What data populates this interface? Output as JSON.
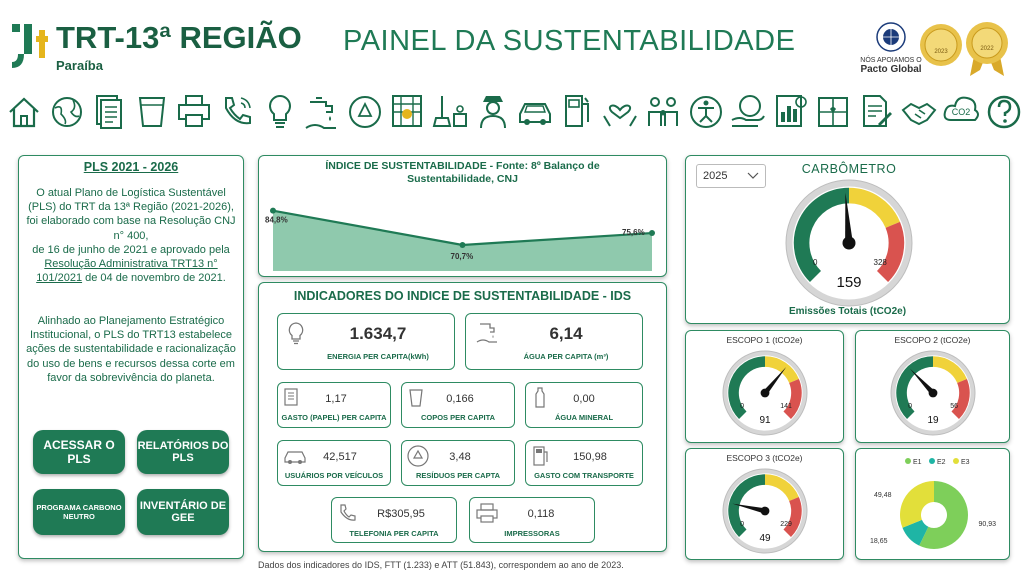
{
  "header": {
    "org_name": "TRT-13ª REGIÃO",
    "org_sub": "Paraíba",
    "title": "PAINEL DA SUSTENTABILIDADE",
    "pacto_line1": "NÓS APOIAMOS O",
    "pacto_line2": "Pacto Global",
    "seal1_year": "2023",
    "seal2_year": "2022",
    "icons": [
      "home-icon",
      "globe-icon",
      "documents-icon",
      "cups-icon",
      "printer-icon",
      "phone-icon",
      "lightbulb-icon",
      "faucet-icon",
      "recycle-icon",
      "building-workers-icon",
      "cleaning-icon",
      "security-guard-icon",
      "car-icon",
      "fuel-pump-icon",
      "heart-hands-icon",
      "people-icon",
      "accessibility-icon",
      "sustainable-hand-icon",
      "report-icon",
      "puzzle-icon",
      "document-pen-icon",
      "handshake-icon",
      "co2-cloud-icon",
      "help-icon"
    ]
  },
  "pls": {
    "title": "PLS 2021 - 2026",
    "p1_a": "O atual Plano de Logística Sustentável (PLS) do TRT da 13ª Região (2021-2026), foi elaborado com base na Resolução CNJ n° 400,",
    "p1_b": "de 16 de junho de 2021 e aprovado pela",
    "p1_link": "Resolução Administrativa TRT13 n° 101/2021",
    "p1_c": "de 04 de novembro de 2021.",
    "p2": "Alinhado ao Planejamento Estratégico Institucional, o PLS do TRT13 estabelece ações de sustentabilidade e racionalização do uso de bens e recursos dessa corte em favor da sobrevivência do planeta.",
    "buttons": [
      "ACESSAR O PLS",
      "RELATÓRIOS DO PLS",
      "PROGRAMA CARBONO NEUTRO",
      "INVENTÁRIO DE GEE"
    ]
  },
  "chart_data": {
    "type": "area",
    "title": "ÍNDICE DE SUSTENTABILIDADE - Fonte: 8º Balanço de Sustentabilidade, CNJ",
    "values": [
      84.8,
      70.7,
      75.6
    ],
    "labels": [
      "84,8%",
      "70,7%",
      "75,6%"
    ]
  },
  "ids": {
    "title": "INDICADORES DO INDICE DE SUSTENTABILIDADE - IDS",
    "energia_val": "1.634,7",
    "energia_lbl": "ENERGIA PER CAPITA(kWh)",
    "agua_val": "6,14",
    "agua_lbl": "ÁGUA PER CAPITA (m³)",
    "papel_val": "1,17",
    "papel_lbl": "GASTO (PAPEL) PER CAPITA",
    "copos_val": "0,166",
    "copos_lbl": "COPOS PER CAPITA",
    "mineral_val": "0,00",
    "mineral_lbl": "ÁGUA MINERAL",
    "veiculos_val": "42,517",
    "veiculos_lbl": "USUÁRIOS POR VEÍCULOS",
    "residuos_val": "3,48",
    "residuos_lbl": "RESÍDUOS PER CAPTA",
    "transporte_val": "150,98",
    "transporte_lbl": "GASTO COM TRANSPORTE",
    "telefonia_val": "R$305,95",
    "telefonia_lbl": "TELEFONIA PER CAPITA",
    "impressoras_val": "0,118",
    "impressoras_lbl": "IMPRESSORAS",
    "footnote": "Dados dos indicadores do IDS, FTT (1.233) e ATT (51.843), correspondem ao ano de 2023."
  },
  "carbometro": {
    "year": "2025",
    "title": "CARBÔMETRO",
    "min": "0",
    "max": "328",
    "value": "159",
    "value_num": 159,
    "max_num": 328,
    "footer": "Emissões Totais  (tCO2e)"
  },
  "escopo1": {
    "title": "ESCOPO 1 (tCO2e)",
    "min": "0",
    "max": "141",
    "value": "91",
    "value_num": 91,
    "max_num": 141
  },
  "escopo2": {
    "title": "ESCOPO 2 (tCO2e)",
    "min": "0",
    "max": "56",
    "value": "19",
    "value_num": 19,
    "max_num": 56
  },
  "escopo3": {
    "title": "ESCOPO 3 (tCO2e)",
    "min": "0",
    "max": "229",
    "value": "49",
    "value_num": 49,
    "max_num": 229
  },
  "donut": {
    "legend": [
      "E1",
      "E2",
      "E3"
    ],
    "colors": [
      "#7ecf5a",
      "#1fb5a5",
      "#e2df3a"
    ],
    "values": [
      90.93,
      18.65,
      49.48
    ],
    "labels": [
      "90,93",
      "18,65",
      "49,48"
    ]
  }
}
